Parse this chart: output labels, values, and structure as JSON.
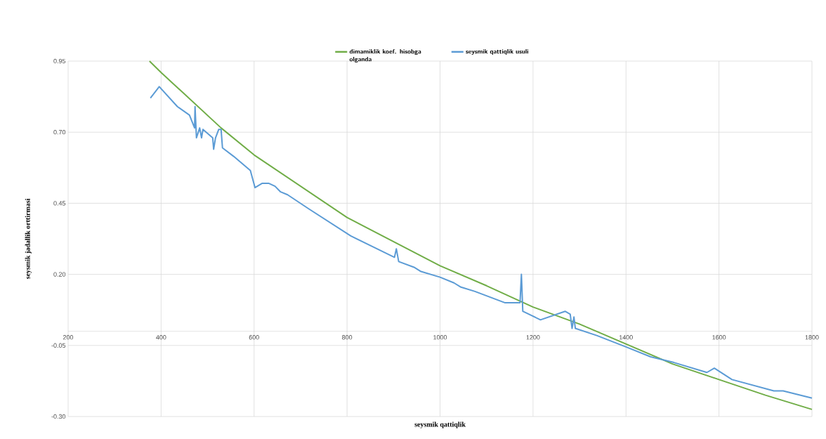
{
  "chart_data": {
    "type": "line",
    "xlabel": "seysmik qattiqlik",
    "ylabel": "seysmik jadallik orttirmasi",
    "xlim": [
      200,
      1800
    ],
    "ylim": [
      -0.3,
      0.95
    ],
    "xticks": [
      200,
      400,
      600,
      800,
      1000,
      1200,
      1400,
      1600,
      1800
    ],
    "yticks": [
      {
        "value": -0.3,
        "label": "-0.30"
      },
      {
        "value": -0.05,
        "label": "-0.05"
      },
      {
        "value": 0.2,
        "label": "0.20"
      },
      {
        "value": 0.45,
        "label": "0.45"
      },
      {
        "value": 0.7,
        "label": "0.70"
      },
      {
        "value": 0.95,
        "label": "0.95"
      }
    ],
    "grid": true,
    "legend": "top",
    "series": [
      {
        "name": "dimamiklik koef. hisobga olganda",
        "color": "#70ad47",
        "x": [
          375,
          400,
          529,
          600,
          800,
          1000,
          1100,
          1200,
          1300,
          1400,
          1500,
          1600,
          1700,
          1800
        ],
        "values": [
          0.95,
          0.91,
          0.715,
          0.62,
          0.4,
          0.23,
          0.16,
          0.085,
          0.025,
          -0.045,
          -0.115,
          -0.17,
          -0.225,
          -0.275
        ]
      },
      {
        "name": "seysmik qattiqlik usuli",
        "color": "#5b9bd5",
        "x": [
          377,
          396,
          435,
          461,
          472,
          473,
          476,
          483,
          487,
          490,
          511,
          513,
          517,
          524,
          529,
          532,
          556,
          592,
          602,
          617,
          632,
          645,
          657,
          672,
          718,
          808,
          858,
          902,
          906,
          911,
          944,
          959,
          1000,
          1030,
          1045,
          1075,
          1140,
          1172,
          1175,
          1178,
          1216,
          1269,
          1280,
          1284,
          1288,
          1291,
          1337,
          1400,
          1453,
          1503,
          1574,
          1590,
          1628,
          1718,
          1738,
          1800
        ],
        "values": [
          0.82,
          0.86,
          0.79,
          0.76,
          0.715,
          0.79,
          0.68,
          0.715,
          0.68,
          0.71,
          0.68,
          0.64,
          0.68,
          0.71,
          0.71,
          0.645,
          0.615,
          0.565,
          0.505,
          0.52,
          0.52,
          0.51,
          0.49,
          0.48,
          0.43,
          0.335,
          0.295,
          0.26,
          0.29,
          0.245,
          0.225,
          0.21,
          0.19,
          0.17,
          0.155,
          0.14,
          0.1,
          0.1,
          0.2,
          0.07,
          0.04,
          0.07,
          0.06,
          0.01,
          0.05,
          0.01,
          -0.015,
          -0.055,
          -0.09,
          -0.11,
          -0.145,
          -0.13,
          -0.17,
          -0.21,
          -0.21,
          -0.235
        ]
      }
    ]
  }
}
